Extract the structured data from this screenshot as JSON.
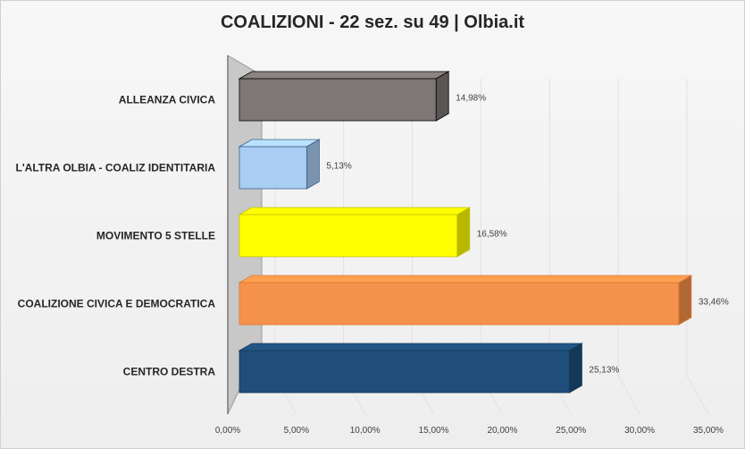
{
  "chart_data": {
    "type": "bar",
    "orientation": "horizontal",
    "three_d": true,
    "title": "COALIZIONI - 22 sez. su 49 | Olbia.it",
    "categories": [
      "ALLEANZA CIVICA",
      "L'ALTRA OLBIA - COALIZ IDENTITARIA",
      "MOVIMENTO 5 STELLE",
      "COALIZIONE CIVICA E DEMOCRATICA",
      "CENTRO DESTRA"
    ],
    "values": [
      14.98,
      5.13,
      16.58,
      33.46,
      25.13
    ],
    "value_labels": [
      "14,98%",
      "5,13%",
      "16,58%",
      "33,46%",
      "25,13%"
    ],
    "colors": [
      "#7f7777",
      "#a9cdf3",
      "#ffff00",
      "#f4914a",
      "#1f4e7a"
    ],
    "edge_colors": [
      "#000000",
      "#3b5f86",
      "#c8c200",
      "#e07a30",
      "#163a5c"
    ],
    "xlim": [
      0,
      35
    ],
    "x_ticks": [
      0,
      5,
      10,
      15,
      20,
      25,
      30,
      35
    ],
    "x_tick_labels": [
      "0,00%",
      "5,00%",
      "10,00%",
      "15,00%",
      "20,00%",
      "25,00%",
      "30,00%",
      "35,00%"
    ],
    "grid": true,
    "legend": "none"
  }
}
